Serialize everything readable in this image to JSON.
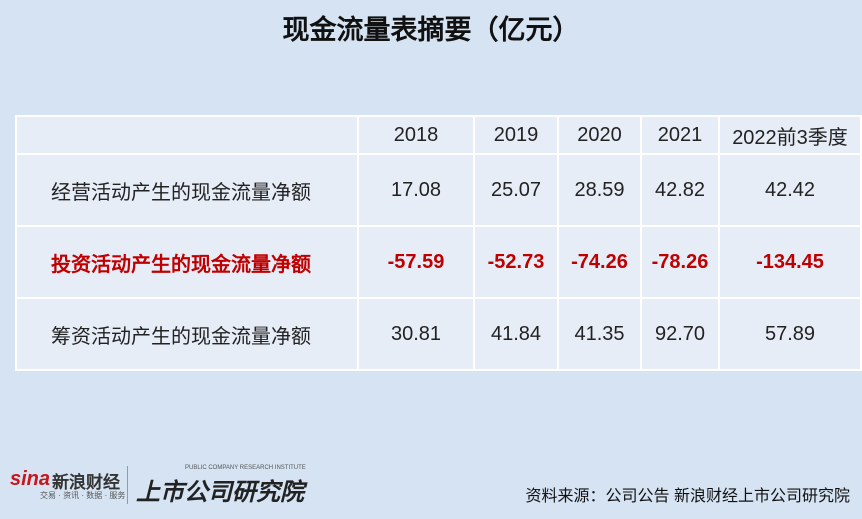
{
  "header": {
    "title": "现金流量表摘要（亿元）"
  },
  "table": {
    "columns": [
      "2018",
      "2019",
      "2020",
      "2021",
      "2022前3季度"
    ],
    "rows": [
      [
        "经营活动产生的现金流量净额",
        "17.08",
        "25.07",
        "28.59",
        "42.82",
        "42.42"
      ],
      [
        "投资活动产生的现金流量净额",
        "-57.59",
        "-52.73",
        "-74.26",
        "-78.26",
        "-134.45"
      ],
      [
        "筹资活动产生的现金流量净额",
        "30.81",
        "41.84",
        "41.35",
        "92.70",
        "57.89"
      ]
    ],
    "highlight_row": 1,
    "highlight_color": "#c00000"
  },
  "footer": {
    "logo_left": "sina",
    "logo_left_name": "新浪财经",
    "logo_left_tagline": "交易 · 资讯 · 数据 · 服务",
    "logo_right": "上市公司研究院",
    "logo_right_tagline": "PUBLIC COMPANY RESEARCH INSTITUTE",
    "source": "资料来源：公司公告 新浪财经上市公司研究院"
  }
}
